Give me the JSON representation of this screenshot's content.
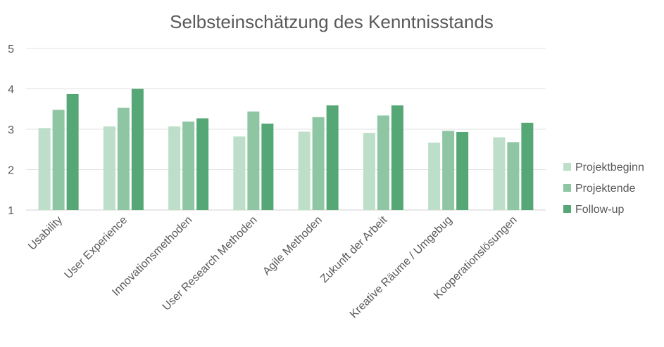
{
  "chart_data": {
    "type": "bar",
    "title": "Selbsteinschätzung des Kenntnisstands",
    "xlabel": "",
    "ylabel": "",
    "ylim": [
      1,
      5
    ],
    "yticks": [
      1,
      2,
      3,
      4,
      5
    ],
    "grid": true,
    "legend_position": "right",
    "categories": [
      "Usability",
      "User Experience",
      "Innovationsmethoden",
      "User Research Methoden",
      "Agile Methoden",
      "Zukunft der Arbeit",
      "Kreative Räume / Umgebug",
      "Kooperationslösungen"
    ],
    "series": [
      {
        "name": "Projektbeginn",
        "color": "#bddec9",
        "values": [
          3.03,
          3.07,
          3.07,
          2.82,
          2.94,
          2.91,
          2.67,
          2.8
        ]
      },
      {
        "name": "Projektende",
        "color": "#8ec5a2",
        "values": [
          3.48,
          3.53,
          3.19,
          3.44,
          3.3,
          3.34,
          2.96,
          2.68
        ]
      },
      {
        "name": "Follow-up",
        "color": "#55a775",
        "values": [
          3.87,
          4.0,
          3.27,
          3.14,
          3.59,
          3.59,
          2.93,
          3.16
        ]
      }
    ]
  }
}
